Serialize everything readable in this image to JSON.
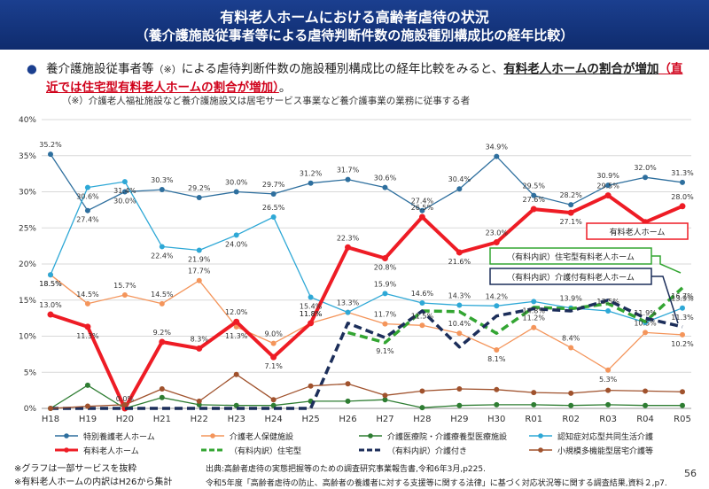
{
  "header": {
    "title": "有料老人ホームにおける高齢者虐待の状況",
    "subtitle": "（養介護施設従事者等による虐待判断件数の施設種別構成比の経年比較）"
  },
  "bullet": {
    "lead": "養介護施設従事者等",
    "note_mark": "（※）",
    "mid": "による虐待判断件数の施設種別構成比の経年比較をみると、",
    "em1": "有料老人ホームの割合が増加",
    "em2": "（直近では住宅型有料老人ホームの割合が増加）",
    "end": "。"
  },
  "note": "（※）介護老人福祉施設など養介護施設又は居宅サービス事業など養介護事業の業務に従事する者",
  "footer": {
    "left1": "※グラフは一部サービスを抜粋",
    "left2": "※有料老人ホームの内訳はH26から集計",
    "source1": "出典:高齢者虐待の実態把握等のための調査研究事業報告書,令和6年3月,p225.",
    "source2": "令和5年度「高齢者虐待の防止、高齢者の養護者に対する支援等に関する法律」に基づく対応状況等に関する調査結果,資料２,p7.",
    "page": "56"
  },
  "colors": {
    "tokuyou": "#2e6f9e",
    "roken": "#f4955b",
    "iryou": "#2e7d32",
    "group": "#2ea8d6",
    "yuryou": "#ee1c25",
    "jutaku": "#33a532",
    "kaigotsuki": "#1c2e5a",
    "shoki": "#a0522d"
  },
  "chart_data": {
    "type": "line",
    "categories": [
      "H18",
      "H19",
      "H20",
      "H21",
      "H22",
      "H23",
      "H24",
      "H25",
      "H26",
      "H27",
      "H28",
      "H29",
      "H30",
      "R01",
      "R02",
      "R03",
      "R04",
      "R05"
    ],
    "ylim": [
      0,
      40
    ],
    "yticks": [
      "0%",
      "5%",
      "10%",
      "15%",
      "20%",
      "25%",
      "30%",
      "35%",
      "40%"
    ],
    "series": [
      {
        "key": "tokuyou",
        "name": "特別養護老人ホーム",
        "style": "solid",
        "width": 1.3,
        "values": [
          35.2,
          27.4,
          30.0,
          30.3,
          29.2,
          30.0,
          29.7,
          31.2,
          31.7,
          30.6,
          27.4,
          30.4,
          34.9,
          29.5,
          28.2,
          30.9,
          32.0,
          31.3
        ],
        "labels": [
          "35.2%",
          "27.4%",
          "30.0%",
          "30.3%",
          "29.2%",
          "30.0%",
          "29.7%",
          "31.2%",
          "31.7%",
          "30.6%",
          "27.4%",
          "30.4%",
          "34.9%",
          "29.5%",
          "28.2%",
          "30.9%",
          "32.0%",
          "31.3%"
        ]
      },
      {
        "key": "roken",
        "name": "介護老人保健施設",
        "style": "solid",
        "width": 1.3,
        "values": [
          18.5,
          14.5,
          15.7,
          14.5,
          17.7,
          11.3,
          9.0,
          11.8,
          13.3,
          11.7,
          11.5,
          10.4,
          8.1,
          11.2,
          8.4,
          5.3,
          10.5,
          10.2
        ],
        "labels": [
          "18.5%",
          "14.5%",
          "15.7%",
          "14.5%",
          "17.7%",
          "11.3%",
          "9.0%",
          "11.8%",
          "13.3%",
          "11.7%",
          "11.5%",
          "10.4%",
          "8.1%",
          "11.2%",
          "8.4%",
          "5.3%",
          "10.5%",
          "10.2%"
        ]
      },
      {
        "key": "iryou",
        "name": "介護医療院・介護療養型医療施設",
        "style": "solid",
        "width": 1.3,
        "values": [
          0.0,
          3.2,
          0.0,
          1.5,
          0.5,
          0.4,
          0.4,
          1.0,
          1.0,
          1.2,
          0.1,
          0.4,
          0.5,
          0.5,
          0.4,
          0.5,
          0.4,
          0.4
        ],
        "labels": []
      },
      {
        "key": "group",
        "name": "認知症対応型共同生活介護",
        "style": "solid",
        "width": 1.3,
        "values": [
          18.5,
          30.6,
          31.4,
          22.4,
          21.9,
          24.0,
          26.5,
          15.4,
          13.3,
          15.9,
          14.6,
          14.3,
          14.2,
          14.8,
          13.9,
          13.5,
          11.9,
          13.9
        ],
        "labels": [
          "18.5%",
          "30.6%",
          "31.4%",
          "22.4%",
          "21.9%",
          "24.0%",
          "26.5%",
          "15.4%",
          "",
          "15.9%",
          "14.6%",
          "14.3%",
          "14.2%",
          "14.8%",
          "13.9%",
          "13.5%",
          "11.9%",
          "13.9%"
        ]
      },
      {
        "key": "yuryou",
        "name": "有料老人ホーム",
        "style": "solid",
        "width": 4,
        "values": [
          13.0,
          11.3,
          0.0,
          9.2,
          8.3,
          12.0,
          7.1,
          11.8,
          22.3,
          20.8,
          26.5,
          21.6,
          23.0,
          27.6,
          27.1,
          29.5,
          25.8,
          28.0
        ],
        "labels": [
          "13.0%",
          "11.3%",
          "0.0%",
          "9.2%",
          "8.3%",
          "12.0%",
          "7.1%",
          "11.8%",
          "22.3%",
          "20.8%",
          "26.5%",
          "21.6%",
          "23.0%",
          "27.6%",
          "27.1%",
          "29.5%",
          "25.8%",
          "28.0%"
        ]
      },
      {
        "key": "jutaku",
        "name": "（有料内訳）住宅型",
        "style": "dashed",
        "width": 3.5,
        "values": [
          null,
          null,
          null,
          null,
          null,
          null,
          null,
          null,
          10.5,
          9.1,
          13.5,
          13.4,
          10.4,
          14.0,
          13.8,
          14.5,
          12.0,
          16.7
        ],
        "labels": [
          "",
          "",
          "",
          "",
          "",
          "",
          "",
          "",
          "",
          "9.1%",
          "",
          "",
          "",
          "",
          "",
          "",
          "",
          "16.7%"
        ]
      },
      {
        "key": "kaigotsuki",
        "name": "（有料内訳）介護付き",
        "style": "dashed",
        "width": 3.5,
        "values": [
          0,
          0,
          0,
          0,
          0,
          0,
          0,
          0,
          11.8,
          9.8,
          13.5,
          8.5,
          12.8,
          13.8,
          13.5,
          15.0,
          12.5,
          11.3
        ],
        "labels": [
          "",
          "",
          "",
          "",
          "",
          "",
          "",
          "",
          "",
          "",
          "",
          "",
          "",
          "",
          "",
          "",
          "",
          "11.3%"
        ]
      },
      {
        "key": "shoki",
        "name": "小規模多機能型居宅介護等",
        "style": "solid",
        "width": 1.3,
        "values": [
          0.0,
          0.3,
          0.5,
          2.7,
          1.0,
          4.7,
          1.2,
          3.1,
          3.4,
          1.8,
          2.4,
          2.7,
          2.6,
          2.2,
          2.1,
          2.5,
          2.4,
          2.3
        ],
        "labels": []
      }
    ],
    "callouts": {
      "yuryou": "有料老人ホーム",
      "jutaku": "（有料内訳）住宅型有料老人ホーム",
      "kaigotsuki": "（有料内訳）介護付有料老人ホーム"
    }
  }
}
